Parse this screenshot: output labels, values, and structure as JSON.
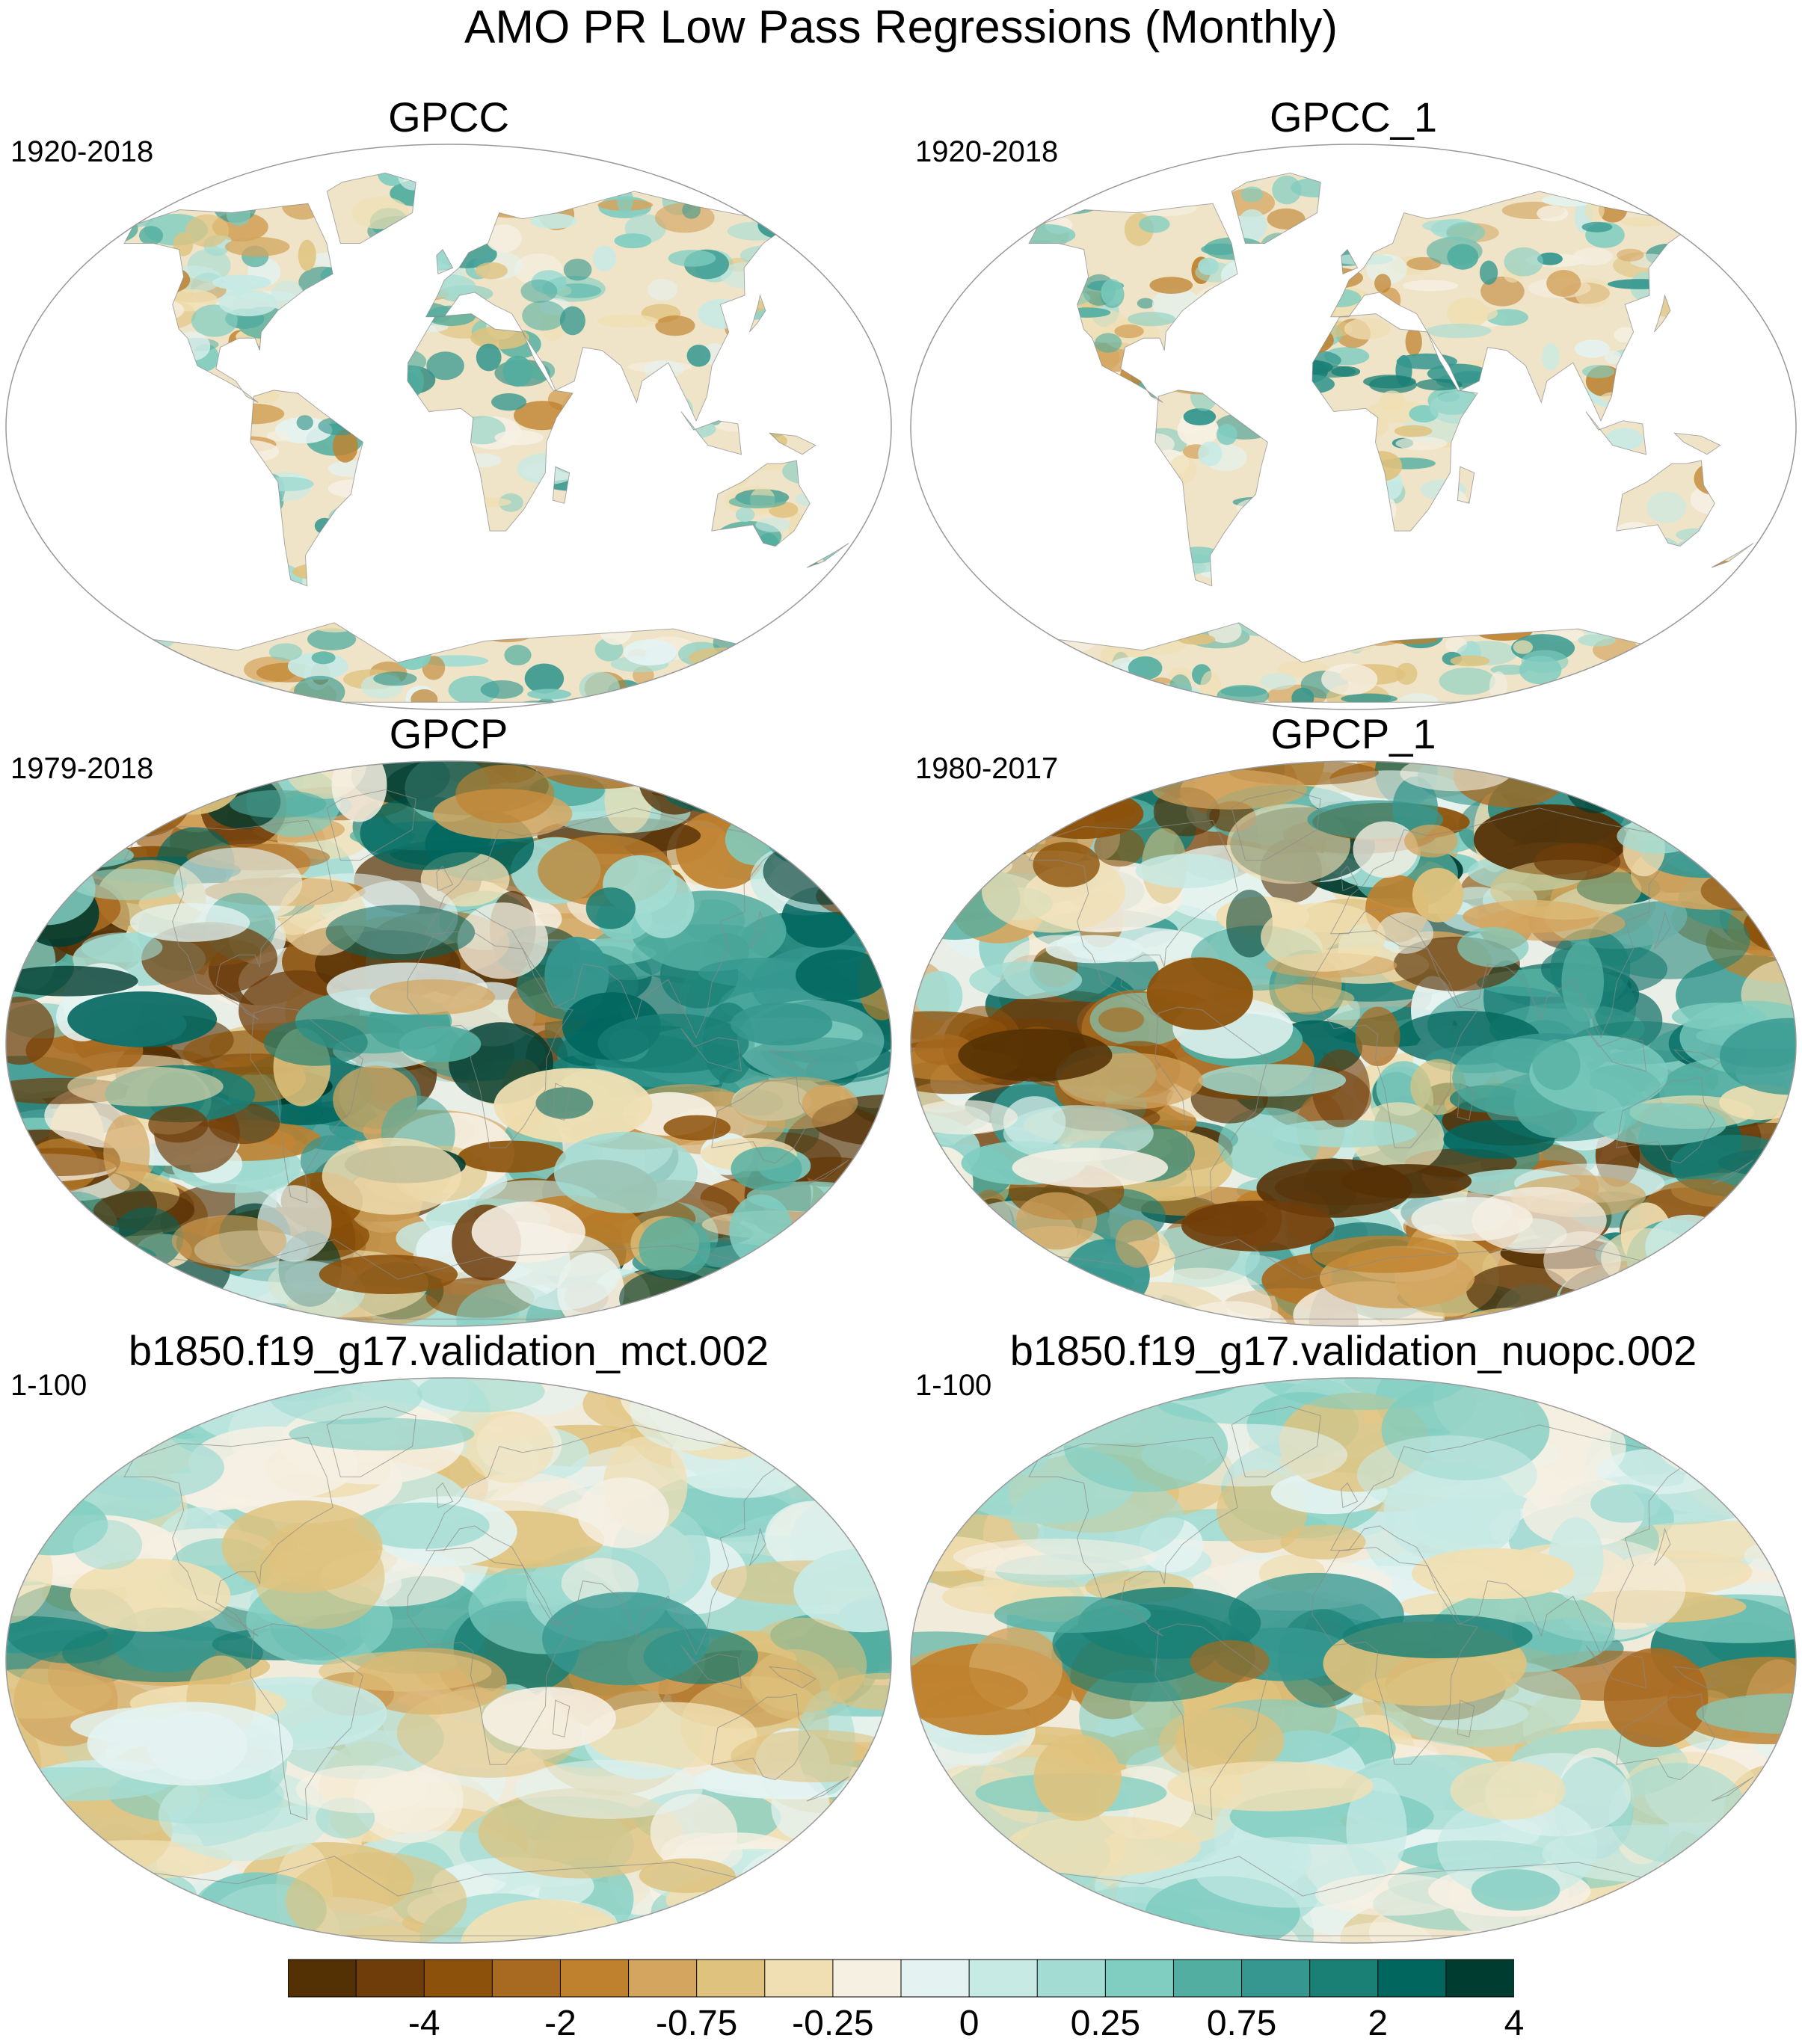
{
  "title": "AMO PR Low Pass Regressions (Monthly)",
  "panels": [
    {
      "id": "gpcc",
      "title": "GPCC",
      "years": "1920-2018",
      "field": "land-only",
      "pattern_seed": 11
    },
    {
      "id": "gpcc1",
      "title": "GPCC_1",
      "years": "1920-2018",
      "field": "land-only",
      "pattern_seed": 12
    },
    {
      "id": "gpcp",
      "title": "GPCP",
      "years": "1979-2018",
      "field": "global-strong",
      "pattern_seed": 21
    },
    {
      "id": "gpcp1",
      "title": "GPCP_1",
      "years": "1980-2017",
      "field": "global-strong",
      "pattern_seed": 22
    },
    {
      "id": "mct",
      "title": "b1850.f19_g17.validation_mct.002",
      "years": "1-100",
      "field": "global-weak",
      "pattern_seed": 31
    },
    {
      "id": "nuopc",
      "title": "b1850.f19_g17.validation_nuopc.002",
      "years": "1-100",
      "field": "global-weak",
      "pattern_seed": 32
    }
  ],
  "colorbar": {
    "colors": [
      "#543005",
      "#6f3d0a",
      "#8c510a",
      "#a86a20",
      "#bf812d",
      "#d4a55f",
      "#dfc27d",
      "#f0dfb3",
      "#f6f0e3",
      "#e4f3f1",
      "#c7eae5",
      "#a3dcd3",
      "#80cdc1",
      "#52aea0",
      "#35978f",
      "#1a7f75",
      "#01665e",
      "#003c30"
    ],
    "tick_labels": [
      "-4",
      "-2",
      "-0.75",
      "-0.25",
      "0",
      "0.25",
      "0.75",
      "2",
      "4"
    ]
  }
}
